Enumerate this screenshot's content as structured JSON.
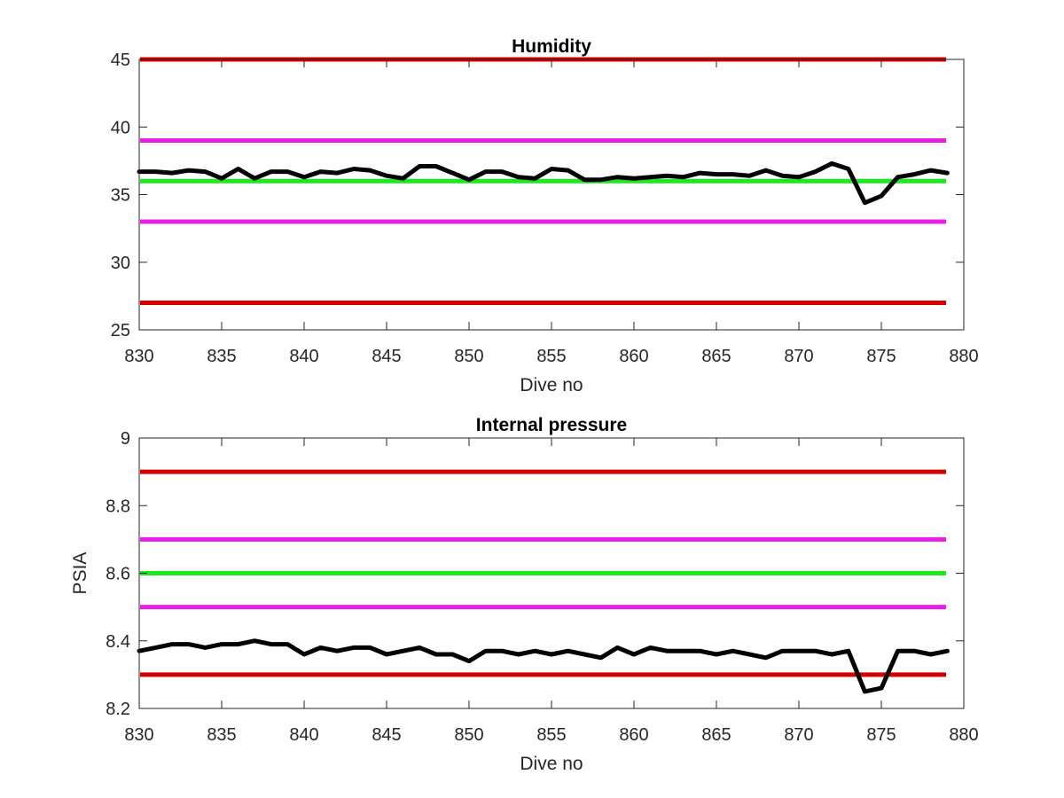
{
  "chart_data": [
    {
      "type": "line",
      "title": "Humidity",
      "xlabel": "Dive no",
      "ylabel": "",
      "xlim": [
        830,
        880
      ],
      "ylim": [
        25,
        45
      ],
      "xticks": [
        830,
        835,
        840,
        845,
        850,
        855,
        860,
        865,
        870,
        875,
        880
      ],
      "yticks": [
        25,
        30,
        35,
        40,
        45
      ],
      "grid": false,
      "legend": "none",
      "reference_lines": [
        {
          "y": 45,
          "color": "#d40000"
        },
        {
          "y": 39,
          "color": "#e81ee8"
        },
        {
          "y": 36,
          "color": "#1ee81e"
        },
        {
          "y": 33,
          "color": "#e81ee8"
        },
        {
          "y": 27,
          "color": "#d40000"
        }
      ],
      "series": [
        {
          "color": "#000000",
          "x": [
            830,
            831,
            832,
            833,
            834,
            835,
            836,
            837,
            838,
            839,
            840,
            841,
            842,
            843,
            844,
            845,
            846,
            847,
            848,
            849,
            850,
            851,
            852,
            853,
            854,
            855,
            856,
            857,
            858,
            859,
            860,
            861,
            862,
            863,
            864,
            865,
            866,
            867,
            868,
            869,
            870,
            871,
            872,
            873,
            874,
            875,
            876,
            877,
            878,
            879
          ],
          "y": [
            36.7,
            36.7,
            36.6,
            36.8,
            36.7,
            36.2,
            36.9,
            36.2,
            36.7,
            36.7,
            36.3,
            36.7,
            36.6,
            36.9,
            36.8,
            36.4,
            36.2,
            37.1,
            37.1,
            36.6,
            36.1,
            36.7,
            36.7,
            36.3,
            36.2,
            36.9,
            36.8,
            36.1,
            36.1,
            36.3,
            36.2,
            36.3,
            36.4,
            36.3,
            36.6,
            36.5,
            36.5,
            36.4,
            36.8,
            36.4,
            36.3,
            36.7,
            37.3,
            36.9,
            34.4,
            34.9,
            36.3,
            36.5,
            36.8,
            36.6
          ]
        }
      ]
    },
    {
      "type": "line",
      "title": "Internal pressure",
      "xlabel": "Dive no",
      "ylabel": "PSIA",
      "xlim": [
        830,
        880
      ],
      "ylim": [
        8.2,
        9
      ],
      "xticks": [
        830,
        835,
        840,
        845,
        850,
        855,
        860,
        865,
        870,
        875,
        880
      ],
      "yticks": [
        8.2,
        8.4,
        8.6,
        8.8,
        9
      ],
      "grid": false,
      "legend": "none",
      "reference_lines": [
        {
          "y": 8.9,
          "color": "#d40000"
        },
        {
          "y": 8.7,
          "color": "#e81ee8"
        },
        {
          "y": 8.6,
          "color": "#1ee81e"
        },
        {
          "y": 8.5,
          "color": "#e81ee8"
        },
        {
          "y": 8.3,
          "color": "#d40000"
        }
      ],
      "series": [
        {
          "color": "#000000",
          "x": [
            830,
            831,
            832,
            833,
            834,
            835,
            836,
            837,
            838,
            839,
            840,
            841,
            842,
            843,
            844,
            845,
            846,
            847,
            848,
            849,
            850,
            851,
            852,
            853,
            854,
            855,
            856,
            857,
            858,
            859,
            860,
            861,
            862,
            863,
            864,
            865,
            866,
            867,
            868,
            869,
            870,
            871,
            872,
            873,
            874,
            875,
            876,
            877,
            878,
            879
          ],
          "y": [
            8.37,
            8.38,
            8.39,
            8.39,
            8.38,
            8.39,
            8.39,
            8.4,
            8.39,
            8.39,
            8.36,
            8.38,
            8.37,
            8.38,
            8.38,
            8.36,
            8.37,
            8.38,
            8.36,
            8.36,
            8.34,
            8.37,
            8.37,
            8.36,
            8.37,
            8.36,
            8.37,
            8.36,
            8.35,
            8.38,
            8.36,
            8.38,
            8.37,
            8.37,
            8.37,
            8.36,
            8.37,
            8.36,
            8.35,
            8.37,
            8.37,
            8.37,
            8.36,
            8.37,
            8.25,
            8.26,
            8.37,
            8.37,
            8.36,
            8.37
          ]
        }
      ]
    }
  ]
}
